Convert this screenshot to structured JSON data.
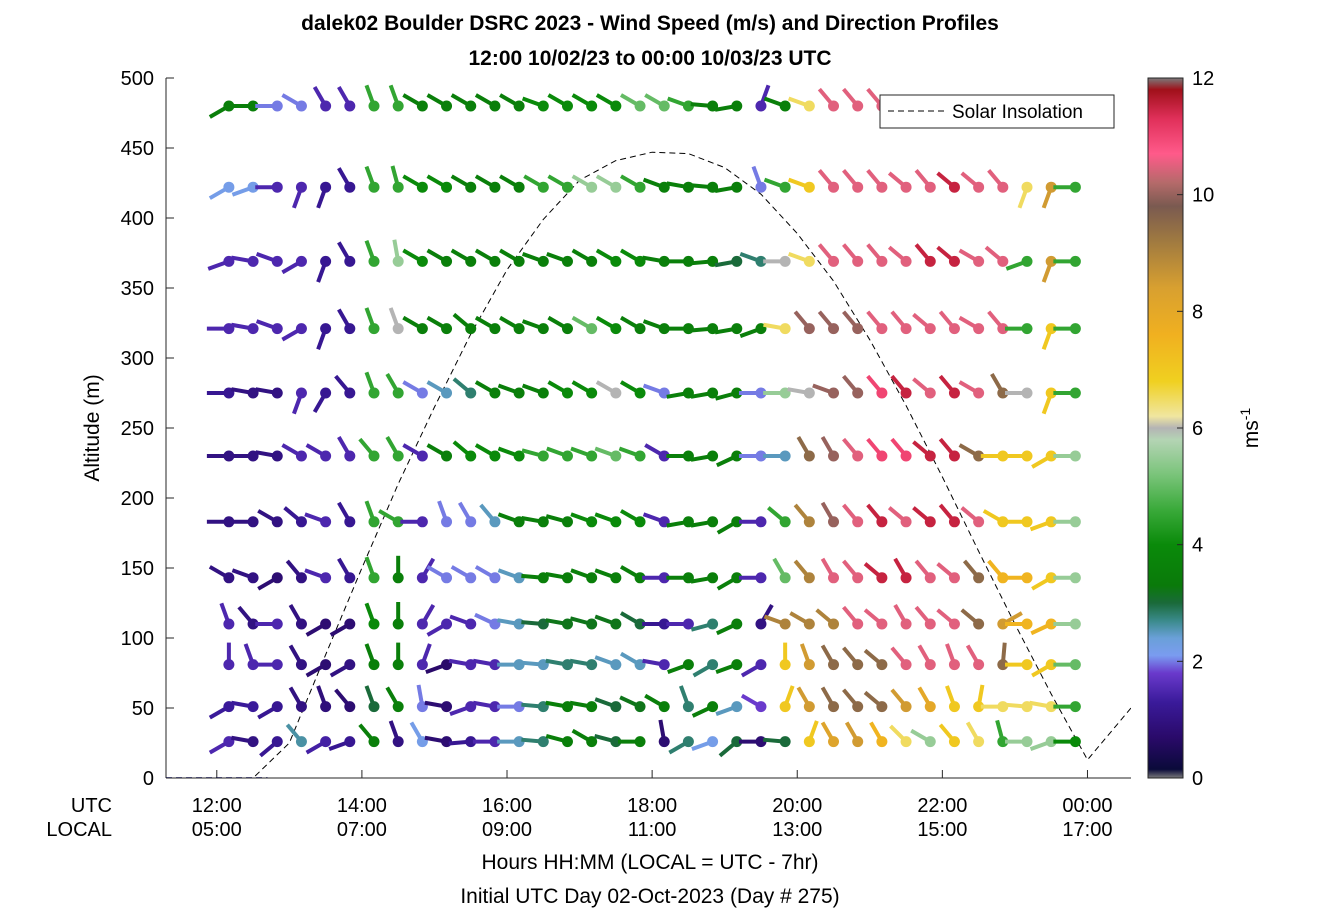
{
  "chart_data": {
    "type": "scatter",
    "title": [
      "dalek02 Boulder DSRC 2023 - Wind Speed (m/s) and Direction Profiles",
      "12:00 10/02/23 to 00:00 10/03/23  UTC"
    ],
    "ylabel": "Altitude (m)",
    "xlabel": [
      "Hours HH:MM  (LOCAL = UTC - 7hr)",
      "Initial UTC Day 02-Oct-2023 (Day # 275)"
    ],
    "x_row_labels": [
      "UTC",
      "LOCAL"
    ],
    "x_ticks_utc": [
      "12:00",
      "14:00",
      "16:00",
      "18:00",
      "20:00",
      "22:00",
      "00:00"
    ],
    "x_ticks_local": [
      "05:00",
      "07:00",
      "09:00",
      "11:00",
      "13:00",
      "15:00",
      "17:00"
    ],
    "x_tick_hours": [
      12,
      14,
      16,
      18,
      20,
      22,
      24
    ],
    "xlim_hours_utc": [
      11.3,
      24.6
    ],
    "ylim": [
      0,
      500
    ],
    "y_ticks": [
      0,
      50,
      100,
      150,
      200,
      250,
      300,
      350,
      400,
      450,
      500
    ],
    "colorbar": {
      "label": "ms",
      "label_superscript": "-1",
      "range": [
        0,
        12
      ],
      "ticks": [
        0,
        2,
        4,
        6,
        8,
        10,
        12
      ],
      "tick_labels": [
        "0",
        "2",
        "4",
        "6",
        "8",
        "10",
        "12"
      ]
    },
    "legend": {
      "label": "Solar Insolation",
      "position": "top-right"
    },
    "solar_insolation": {
      "x_hours_utc": [
        11.3,
        12.0,
        12.5,
        13.0,
        13.5,
        14.0,
        14.5,
        15.0,
        15.5,
        16.0,
        16.5,
        17.0,
        17.5,
        18.0,
        18.5,
        19.0,
        19.5,
        20.0,
        20.5,
        21.0,
        21.5,
        22.0,
        22.5,
        23.0,
        23.5,
        24.0,
        24.6
      ],
      "altitude_units": [
        0,
        0,
        0,
        25,
        88,
        150,
        210,
        265,
        317,
        363,
        399,
        427,
        441,
        447,
        446,
        436,
        417,
        389,
        355,
        313,
        266,
        215,
        162,
        110,
        60,
        13,
        50
      ]
    },
    "profile_altitudes_m": [
      26,
      51,
      81,
      110,
      143,
      183,
      230,
      275,
      321,
      369,
      422,
      480
    ],
    "profile_times_utc": [
      "12:10",
      "12:30",
      "12:50",
      "13:10",
      "13:30",
      "13:50",
      "14:10",
      "14:30",
      "14:50",
      "15:10",
      "15:30",
      "15:50",
      "16:10",
      "16:30",
      "16:50",
      "17:10",
      "17:30",
      "17:50",
      "18:10",
      "18:30",
      "18:50",
      "19:10",
      "19:30",
      "19:50",
      "20:10",
      "20:30",
      "20:50",
      "21:10",
      "21:30",
      "21:50",
      "22:10",
      "22:30",
      "22:50",
      "23:10",
      "23:30",
      "23:50"
    ],
    "note_calm_samples_before_1210": "x_hours_utc 11.5-12.0 at altitudes 26, 51",
    "series": [
      {
        "altitude_m": 26,
        "speed_ms": [
          1.5,
          1.0,
          1.2,
          2.6,
          1.4,
          1.2,
          3.5,
          1.0,
          2.2,
          0.8,
          1.2,
          1.5,
          2.5,
          2.8,
          3.5,
          3.5,
          3.0,
          3.5,
          0.8,
          2.8,
          2.2,
          3.0,
          0.8,
          3.0,
          7.0,
          8.2,
          8.5,
          7.5,
          6.5,
          5.5,
          7.0,
          6.5,
          4.5,
          5.5,
          5.5,
          4.0
        ],
        "direction_deg": [
          240,
          280,
          230,
          320,
          240,
          250,
          320,
          340,
          330,
          280,
          265,
          270,
          270,
          275,
          285,
          300,
          285,
          270,
          350,
          240,
          250,
          230,
          270,
          275,
          20,
          330,
          330,
          330,
          315,
          300,
          320,
          330,
          345,
          270,
          250,
          270
        ]
      },
      {
        "altitude_m": 51,
        "speed_ms": [
          1.3,
          1.3,
          1.2,
          1.0,
          0.9,
          0.8,
          3.0,
          3.5,
          2.0,
          0.8,
          1.5,
          1.5,
          2.0,
          2.8,
          3.5,
          3.5,
          3.0,
          3.2,
          3.5,
          2.8,
          3.5,
          2.5,
          1.8,
          7.0,
          8.5,
          9.5,
          9.5,
          9.5,
          8.5,
          8.0,
          7.0,
          7.0,
          6.5,
          6.5,
          6.5,
          4.5
        ],
        "direction_deg": [
          240,
          280,
          240,
          330,
          340,
          320,
          340,
          330,
          350,
          280,
          250,
          280,
          270,
          275,
          280,
          280,
          290,
          295,
          300,
          340,
          245,
          250,
          300,
          20,
          330,
          330,
          320,
          310,
          320,
          330,
          340,
          10,
          270,
          275,
          280,
          270
        ]
      },
      {
        "altitude_m": 81,
        "speed_ms": [
          1.5,
          1.5,
          1.5,
          1.0,
          0.8,
          1.0,
          3.5,
          3.5,
          1.5,
          0.7,
          1.5,
          1.5,
          2.5,
          2.5,
          2.8,
          2.8,
          2.5,
          2.5,
          1.5,
          3.5,
          2.8,
          3.5,
          1.5,
          7.0,
          8.5,
          9.5,
          9.5,
          9.5,
          10.5,
          10.5,
          10.5,
          10.5,
          9.5,
          7.0,
          7.0,
          5.0
        ],
        "direction_deg": [
          0,
          340,
          270,
          330,
          240,
          240,
          340,
          0,
          20,
          250,
          280,
          280,
          270,
          275,
          280,
          280,
          290,
          300,
          280,
          250,
          240,
          250,
          240,
          0,
          340,
          330,
          320,
          310,
          320,
          330,
          340,
          330,
          5,
          270,
          240,
          270
        ]
      },
      {
        "altitude_m": 110,
        "speed_ms": [
          1.5,
          1.0,
          1.5,
          1.0,
          0.8,
          0.8,
          4.0,
          3.5,
          1.5,
          1.5,
          1.5,
          2.0,
          2.5,
          3.0,
          3.2,
          3.2,
          3.2,
          3.0,
          1.2,
          1.5,
          2.8,
          3.5,
          1.0,
          9.0,
          9.0,
          9.0,
          10.5,
          10.5,
          10.5,
          10.5,
          10.5,
          9.5,
          8.5,
          7.5,
          7.5,
          5.5
        ],
        "direction_deg": [
          340,
          320,
          270,
          330,
          240,
          240,
          340,
          0,
          30,
          240,
          290,
          295,
          280,
          275,
          280,
          285,
          290,
          300,
          270,
          270,
          255,
          245,
          30,
          290,
          300,
          310,
          320,
          310,
          330,
          320,
          310,
          310,
          60,
          270,
          245,
          270
        ]
      },
      {
        "altitude_m": 143,
        "speed_ms": [
          1.0,
          1.0,
          0.8,
          1.0,
          1.5,
          1.2,
          4.5,
          3.5,
          1.5,
          2.0,
          2.0,
          2.0,
          2.5,
          3.5,
          3.5,
          3.5,
          3.5,
          3.5,
          1.5,
          3.5,
          3.5,
          3.5,
          1.5,
          5.0,
          9.0,
          10.5,
          10.5,
          11.5,
          11.5,
          10.5,
          10.5,
          9.5,
          7.5,
          7.5,
          7.0,
          5.5
        ],
        "direction_deg": [
          300,
          290,
          240,
          320,
          290,
          330,
          340,
          0,
          30,
          300,
          300,
          300,
          290,
          275,
          280,
          290,
          290,
          300,
          270,
          270,
          260,
          240,
          270,
          330,
          320,
          330,
          320,
          310,
          330,
          320,
          310,
          320,
          320,
          270,
          240,
          270
        ]
      },
      {
        "altitude_m": 183,
        "speed_ms": [
          1.0,
          1.0,
          1.0,
          1.2,
          1.5,
          1.2,
          4.5,
          4.5,
          1.5,
          2.0,
          2.0,
          2.5,
          3.5,
          3.5,
          3.5,
          4.0,
          4.0,
          4.0,
          1.5,
          3.5,
          3.5,
          3.5,
          1.5,
          4.5,
          9.0,
          10.0,
          10.5,
          11.5,
          10.5,
          11.5,
          11.5,
          10.5,
          7.0,
          7.0,
          7.0,
          5.5
        ],
        "direction_deg": [
          270,
          270,
          300,
          310,
          290,
          330,
          340,
          300,
          270,
          340,
          330,
          320,
          290,
          280,
          285,
          290,
          290,
          300,
          290,
          260,
          260,
          240,
          270,
          310,
          320,
          330,
          320,
          320,
          310,
          310,
          320,
          310,
          300,
          270,
          250,
          270
        ]
      },
      {
        "altitude_m": 230,
        "speed_ms": [
          1.0,
          1.0,
          1.0,
          1.5,
          1.5,
          1.5,
          4.5,
          4.5,
          1.5,
          3.5,
          4.0,
          4.0,
          4.0,
          4.5,
          4.5,
          4.5,
          5.0,
          4.5,
          1.5,
          3.5,
          3.5,
          3.5,
          2.0,
          2.5,
          9.5,
          10.0,
          10.5,
          11.0,
          11.0,
          11.5,
          11.5,
          9.5,
          7.0,
          7.0,
          7.0,
          5.5
        ],
        "direction_deg": [
          270,
          270,
          280,
          300,
          300,
          330,
          320,
          330,
          300,
          300,
          310,
          300,
          290,
          285,
          290,
          290,
          290,
          290,
          300,
          270,
          260,
          245,
          270,
          270,
          330,
          330,
          320,
          320,
          320,
          310,
          320,
          300,
          270,
          270,
          240,
          270
        ]
      },
      {
        "altitude_m": 275,
        "speed_ms": [
          1.2,
          1.0,
          1.0,
          1.5,
          1.2,
          1.2,
          4.5,
          4.5,
          2.0,
          2.5,
          2.8,
          3.5,
          3.5,
          3.5,
          4.0,
          4.0,
          6.0,
          4.0,
          2.0,
          3.5,
          3.5,
          3.5,
          2.0,
          5.5,
          6.0,
          10.0,
          10.0,
          11.0,
          11.5,
          10.5,
          11.5,
          10.5,
          9.5,
          6.0,
          7.0,
          4.5
        ],
        "direction_deg": [
          270,
          280,
          280,
          200,
          210,
          320,
          340,
          330,
          300,
          300,
          310,
          300,
          290,
          290,
          300,
          300,
          300,
          300,
          290,
          260,
          260,
          255,
          270,
          270,
          280,
          290,
          320,
          320,
          320,
          310,
          320,
          300,
          330,
          270,
          200,
          270
        ]
      },
      {
        "altitude_m": 321,
        "speed_ms": [
          1.5,
          1.5,
          1.5,
          1.5,
          1.2,
          1.2,
          4.5,
          6.0,
          3.5,
          3.5,
          3.5,
          3.5,
          3.5,
          3.5,
          3.5,
          5.0,
          4.0,
          3.5,
          3.5,
          3.5,
          3.5,
          3.5,
          3.5,
          6.5,
          10.0,
          10.0,
          10.0,
          10.5,
          10.5,
          10.5,
          10.5,
          10.5,
          10.5,
          4.5,
          7.0,
          4.5
        ],
        "direction_deg": [
          270,
          280,
          290,
          240,
          200,
          330,
          340,
          340,
          300,
          300,
          310,
          300,
          300,
          290,
          300,
          300,
          300,
          300,
          290,
          270,
          265,
          260,
          250,
          280,
          320,
          320,
          320,
          320,
          320,
          310,
          320,
          300,
          320,
          270,
          200,
          270
        ]
      },
      {
        "altitude_m": 369,
        "speed_ms": [
          1.5,
          1.5,
          1.5,
          1.5,
          1.2,
          1.2,
          4.5,
          5.5,
          4.0,
          3.5,
          3.5,
          3.5,
          3.5,
          3.5,
          3.5,
          3.5,
          4.0,
          4.0,
          3.5,
          3.5,
          3.5,
          3.0,
          2.8,
          6.0,
          6.5,
          10.5,
          10.5,
          10.5,
          10.5,
          11.5,
          11.5,
          10.5,
          10.5,
          4.5,
          8.5,
          4.5
        ],
        "direction_deg": [
          250,
          280,
          290,
          240,
          200,
          330,
          340,
          350,
          300,
          300,
          300,
          300,
          300,
          290,
          290,
          300,
          300,
          300,
          280,
          270,
          265,
          260,
          290,
          270,
          290,
          320,
          320,
          320,
          310,
          320,
          310,
          300,
          310,
          250,
          200,
          270
        ]
      },
      {
        "altitude_m": 422,
        "speed_ms": [
          2.2,
          2.2,
          1.5,
          1.5,
          1.2,
          1.2,
          4.5,
          4.5,
          4.0,
          4.0,
          3.5,
          3.5,
          3.5,
          4.5,
          4.5,
          5.5,
          5.5,
          4.5,
          3.5,
          3.5,
          3.5,
          3.5,
          2.0,
          4.5,
          7.0,
          10.5,
          10.5,
          10.5,
          10.5,
          10.5,
          11.5,
          10.5,
          10.5,
          6.5,
          8.5,
          4.5
        ],
        "direction_deg": [
          240,
          250,
          270,
          200,
          200,
          330,
          340,
          345,
          300,
          300,
          300,
          300,
          300,
          300,
          300,
          300,
          300,
          300,
          290,
          280,
          275,
          260,
          340,
          290,
          290,
          320,
          320,
          320,
          310,
          320,
          310,
          310,
          320,
          200,
          200,
          270
        ]
      },
      {
        "altitude_m": 480,
        "speed_ms": [
          3.5,
          3.5,
          2.0,
          2.0,
          1.5,
          1.5,
          4.5,
          4.5,
          3.5,
          3.5,
          3.5,
          3.5,
          3.5,
          4.0,
          4.0,
          4.0,
          4.0,
          5.0,
          5.0,
          4.5,
          3.5,
          3.5,
          1.5,
          3.5,
          6.5,
          10.5,
          10.5,
          10.5
        ],
        "direction_deg": [
          240,
          270,
          270,
          300,
          330,
          330,
          340,
          340,
          300,
          300,
          300,
          300,
          300,
          290,
          300,
          300,
          300,
          300,
          300,
          290,
          275,
          260,
          20,
          290,
          290,
          320,
          320,
          320
        ]
      }
    ]
  }
}
